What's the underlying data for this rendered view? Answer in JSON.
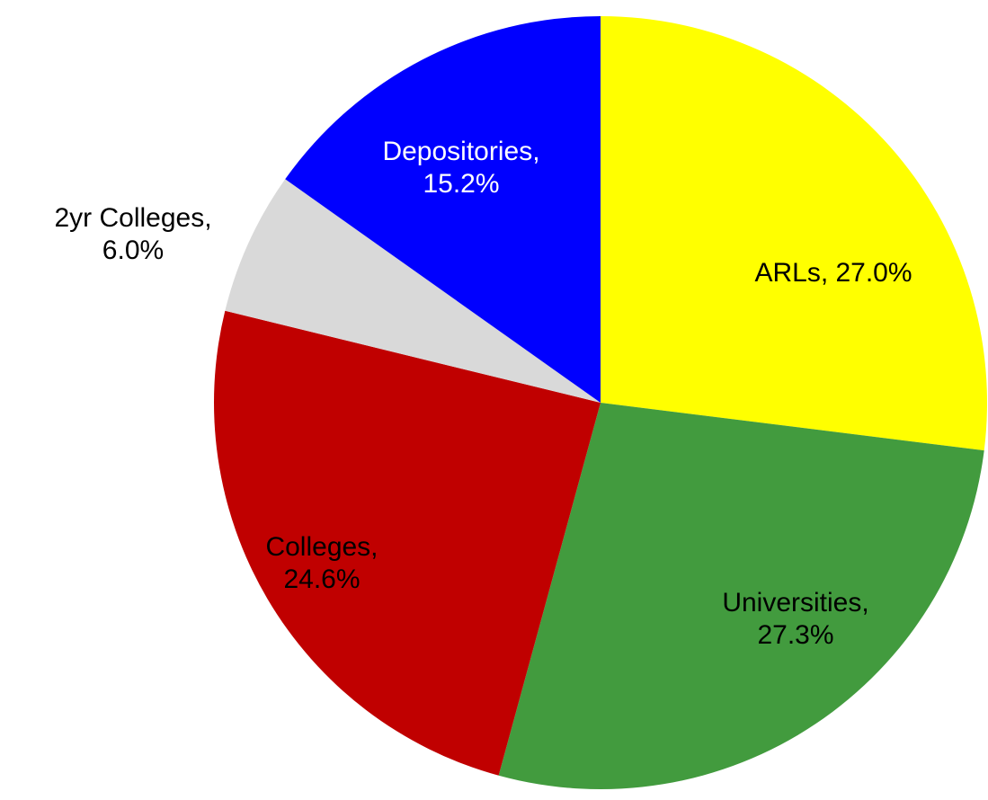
{
  "chart_data": {
    "type": "pie",
    "values": [
      27.0,
      27.3,
      24.6,
      6.0,
      15.2
    ],
    "value_labels": [
      "ARLs, 27.0%",
      "Universities,\n27.3%",
      "Colleges,\n24.6%",
      "2yr Colleges,\n6.0%",
      "Depositories,\n15.2%"
    ],
    "colors": [
      "#ffff00",
      "#429b3e",
      "#c00000",
      "#d9d9d9",
      "#0000ff"
    ]
  }
}
